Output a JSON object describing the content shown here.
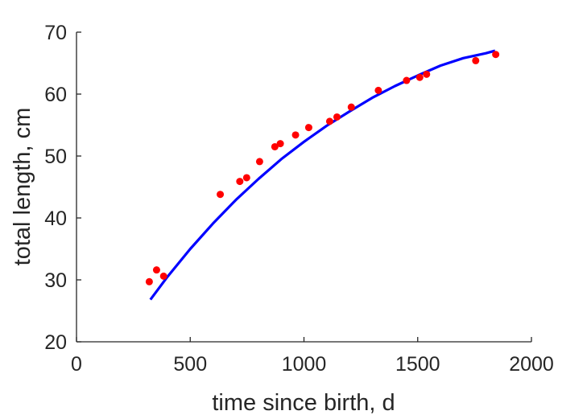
{
  "chart_data": {
    "type": "scatter",
    "title": "",
    "xlabel": "time since birth, d",
    "ylabel": "total length, cm",
    "xlim": [
      0,
      2000
    ],
    "ylim": [
      20,
      70
    ],
    "xticks": [
      0,
      500,
      1000,
      1500,
      2000
    ],
    "yticks": [
      20,
      30,
      40,
      50,
      60,
      70
    ],
    "grid": false,
    "colors": {
      "data": "#ff0000",
      "fit": "#0000ff",
      "axes": "#262626"
    },
    "series": [
      {
        "kind": "points",
        "x": [
          320,
          352,
          383,
          632,
          718,
          748,
          805,
          872,
          896,
          963,
          1021,
          1113,
          1145,
          1208,
          1327,
          1451,
          1509,
          1539,
          1755,
          1843
        ],
        "y": [
          29.7,
          31.6,
          30.6,
          43.8,
          45.9,
          46.5,
          49.1,
          51.5,
          52.0,
          53.4,
          54.6,
          55.6,
          56.3,
          57.9,
          60.6,
          62.2,
          62.7,
          63.2,
          65.4,
          66.4
        ]
      },
      {
        "kind": "line",
        "x": [
          325,
          400,
          500,
          600,
          700,
          800,
          900,
          1000,
          1100,
          1200,
          1300,
          1400,
          1500,
          1600,
          1700,
          1800,
          1840
        ],
        "y": [
          26.8,
          30.5,
          35.0,
          39.1,
          42.9,
          46.3,
          49.5,
          52.3,
          54.9,
          57.2,
          59.4,
          61.3,
          63.0,
          64.6,
          65.8,
          66.6,
          67.0
        ]
      }
    ]
  }
}
